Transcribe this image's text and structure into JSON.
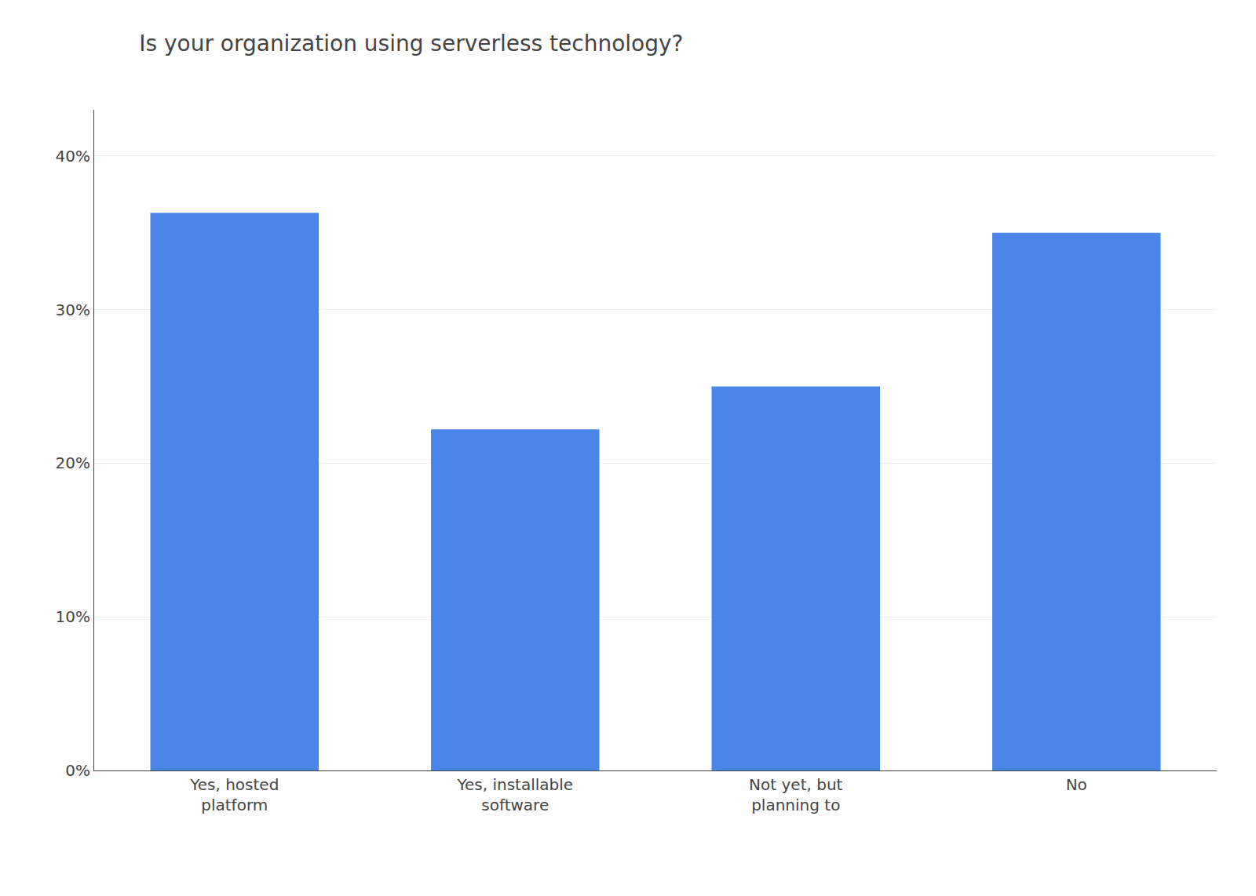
{
  "chart_data": {
    "type": "bar",
    "title": "Is your organization using serverless technology?",
    "categories": [
      "Yes, hosted\nplatform",
      "Yes, installable\nsoftware",
      "Not yet, but\nplanning to",
      "No"
    ],
    "values": [
      36.3,
      22.2,
      25.0,
      35.0
    ],
    "color": "#4a86e8",
    "ylim": [
      0,
      43
    ],
    "yticks": [
      {
        "value": 0,
        "label": "0%"
      },
      {
        "value": 10,
        "label": "10%"
      },
      {
        "value": 20,
        "label": "20%"
      },
      {
        "value": 30,
        "label": "30%"
      },
      {
        "value": 40,
        "label": "40%"
      }
    ],
    "grid": true
  }
}
